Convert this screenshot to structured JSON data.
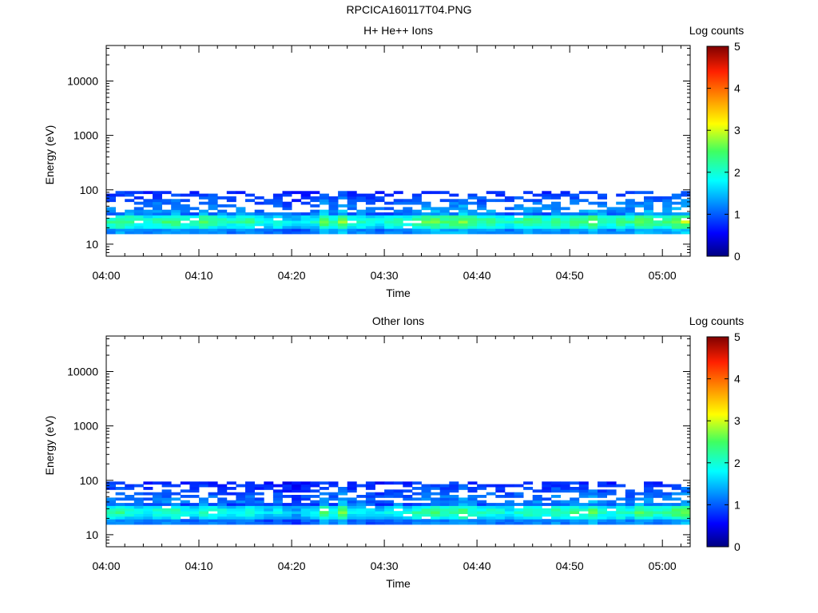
{
  "figure": {
    "title": "RPCICA160117T04.PNG"
  },
  "chart_data": [
    {
      "type": "heatmap",
      "title": "H+ He++ Ions",
      "xlabel": "Time",
      "ylabel": "Energy (eV)",
      "y_scale": "log",
      "ylim": [
        6,
        45000
      ],
      "xlim": [
        "04:00",
        "05:03"
      ],
      "x_ticks": [
        "04:00",
        "04:10",
        "04:20",
        "04:30",
        "04:40",
        "04:50",
        "05:00"
      ],
      "y_ticks": [
        "10",
        "100",
        "1000",
        "10000"
      ],
      "colorbar": {
        "label": "Log counts",
        "range": [
          0,
          5
        ],
        "ticks": [
          "0",
          "1",
          "2",
          "3",
          "4",
          "5"
        ]
      },
      "band_profile": [
        2.0,
        2.2,
        2.1,
        1.9,
        1.8,
        2.0,
        2.1,
        2.2,
        2.0,
        1.9,
        2.3,
        2.1,
        1.9,
        1.8,
        2.0,
        2.1,
        1.7,
        1.6,
        1.8,
        1.5,
        1.4,
        1.6,
        1.7,
        2.4,
        1.9,
        2.6,
        1.8,
        1.9,
        1.7,
        1.6,
        1.8,
        1.9,
        1.8,
        2.1,
        2.3,
        2.4,
        2.2,
        2.3,
        2.5,
        2.2,
        2.0,
        2.1,
        1.9,
        1.8,
        2.0,
        2.2,
        2.1,
        1.9,
        2.2,
        2.0,
        2.3,
        2.1,
        2.5,
        2.0,
        1.9,
        2.2,
        2.0,
        2.4,
        2.3,
        2.1,
        2.2,
        2.5,
        2.6
      ]
    },
    {
      "type": "heatmap",
      "title": "Other Ions",
      "xlabel": "Time",
      "ylabel": "Energy (eV)",
      "y_scale": "log",
      "ylim": [
        6,
        45000
      ],
      "xlim": [
        "04:00",
        "05:03"
      ],
      "x_ticks": [
        "04:00",
        "04:10",
        "04:20",
        "04:30",
        "04:40",
        "04:50",
        "05:00"
      ],
      "y_ticks": [
        "10",
        "100",
        "1000",
        "10000"
      ],
      "colorbar": {
        "label": "Log counts",
        "range": [
          0,
          5
        ],
        "ticks": [
          "0",
          "1",
          "2",
          "3",
          "4",
          "5"
        ]
      },
      "band_profile": [
        1.9,
        2.0,
        1.8,
        1.7,
        1.6,
        1.8,
        1.9,
        2.0,
        1.7,
        1.6,
        1.9,
        1.8,
        1.7,
        1.5,
        1.7,
        1.8,
        1.5,
        1.4,
        1.6,
        1.3,
        1.2,
        1.5,
        1.6,
        2.2,
        1.7,
        2.4,
        1.6,
        1.7,
        1.5,
        1.4,
        1.6,
        1.7,
        1.6,
        1.9,
        2.0,
        2.1,
        1.9,
        2.0,
        2.2,
        1.9,
        1.8,
        1.9,
        1.7,
        1.6,
        1.8,
        2.0,
        1.9,
        1.7,
        2.0,
        1.8,
        2.1,
        1.9,
        2.3,
        1.8,
        1.7,
        2.0,
        1.8,
        2.2,
        2.1,
        1.9,
        2.0,
        2.3,
        2.4
      ]
    }
  ]
}
